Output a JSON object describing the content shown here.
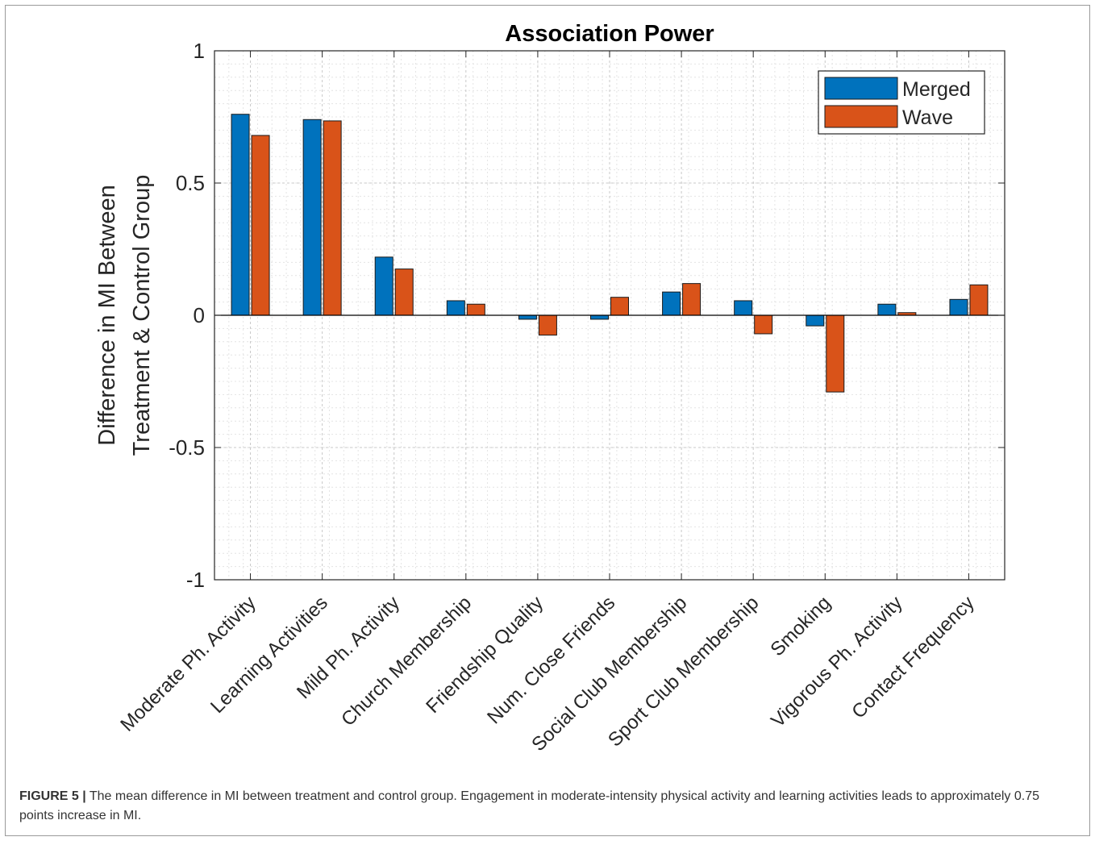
{
  "chart_data": {
    "type": "bar",
    "title": "Association Power",
    "ylabel_lines": [
      "Difference in MI Between",
      "Treatment & Control Group"
    ],
    "xlabel": "",
    "ylim": [
      -1,
      1
    ],
    "yticks": [
      -1,
      -0.5,
      0,
      0.5,
      1
    ],
    "ytick_labels": [
      "-1",
      "-0.5",
      "0",
      "0.5",
      "1"
    ],
    "grid": true,
    "legend_position": "top-right",
    "categories": [
      "Moderate Ph. Activity",
      "Learning Activities",
      "Mild Ph. Activity",
      "Church Membership",
      "Friendship Quality",
      "Num. Close Friends",
      "Social Club Membership",
      "Sport Club Membership",
      "Smoking",
      "Vigorous Ph. Activity",
      "Contact Frequency"
    ],
    "series": [
      {
        "name": "Merged",
        "color": "#0072BD",
        "values": [
          0.76,
          0.74,
          0.22,
          0.055,
          -0.015,
          -0.015,
          0.088,
          0.055,
          -0.04,
          0.042,
          0.06
        ]
      },
      {
        "name": "Wave",
        "color": "#D95319",
        "values": [
          0.68,
          0.735,
          0.175,
          0.042,
          -0.075,
          0.068,
          0.12,
          -0.07,
          -0.29,
          0.01,
          0.115
        ]
      }
    ]
  },
  "caption": {
    "label": "FIGURE 5 |",
    "text": " The mean difference in MI between treatment and control group. Engagement in moderate-intensity physical activity and learning activities leads to approximately 0.75 points increase in MI."
  }
}
